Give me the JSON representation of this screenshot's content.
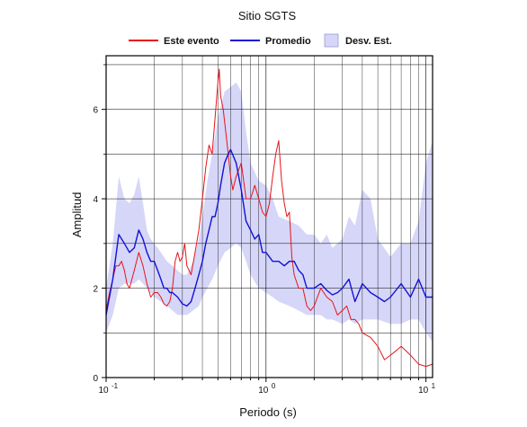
{
  "chart_data": {
    "type": "line",
    "title": "Sitio SGTS",
    "xlabel": "Periodo (s)",
    "ylabel": "Amplitud",
    "x_scale": "log",
    "xlim": [
      0.1,
      11
    ],
    "ylim": [
      0,
      7.2
    ],
    "grid": true,
    "legend_position": "top",
    "x_ticks": [
      {
        "value": 0.1,
        "base": "10",
        "exp": "-1"
      },
      {
        "value": 1,
        "label": "10",
        "exp": "0"
      },
      {
        "value": 10,
        "base": "10",
        "exp": "1"
      }
    ],
    "y_ticks": [
      0,
      2,
      4,
      6
    ],
    "legend": [
      {
        "label": "Este evento",
        "color": "#e8141b",
        "kind": "line"
      },
      {
        "label": "Promedio",
        "color": "#1212d6",
        "kind": "line"
      },
      {
        "label": "Desv. Est.",
        "color": "#d6d6f8",
        "kind": "band"
      }
    ],
    "series": [
      {
        "name": "Este evento",
        "color": "#e8141b",
        "x": [
          0.1,
          0.105,
          0.11,
          0.115,
          0.12,
          0.125,
          0.13,
          0.135,
          0.14,
          0.15,
          0.16,
          0.17,
          0.18,
          0.19,
          0.2,
          0.21,
          0.22,
          0.23,
          0.24,
          0.25,
          0.26,
          0.27,
          0.28,
          0.29,
          0.3,
          0.31,
          0.32,
          0.34,
          0.36,
          0.38,
          0.4,
          0.42,
          0.44,
          0.46,
          0.48,
          0.5,
          0.51,
          0.52,
          0.54,
          0.56,
          0.58,
          0.6,
          0.62,
          0.65,
          0.7,
          0.75,
          0.8,
          0.85,
          0.9,
          0.95,
          1.0,
          1.05,
          1.1,
          1.15,
          1.2,
          1.25,
          1.3,
          1.35,
          1.4,
          1.45,
          1.5,
          1.6,
          1.7,
          1.8,
          1.9,
          2.0,
          2.2,
          2.4,
          2.6,
          2.8,
          3.0,
          3.2,
          3.4,
          3.6,
          3.8,
          4.0,
          4.5,
          5.0,
          5.5,
          6.0,
          6.5,
          7.0,
          7.5,
          8.0,
          9.0,
          10.0,
          11.0
        ],
        "y": [
          1.5,
          1.9,
          2.2,
          2.5,
          2.5,
          2.6,
          2.4,
          2.1,
          2.0,
          2.4,
          2.8,
          2.5,
          2.1,
          1.8,
          1.9,
          1.9,
          1.8,
          1.65,
          1.6,
          1.7,
          2.0,
          2.6,
          2.8,
          2.6,
          2.7,
          3.0,
          2.5,
          2.3,
          2.8,
          3.3,
          4.0,
          4.7,
          5.2,
          5.0,
          5.8,
          6.6,
          6.9,
          6.3,
          6.0,
          5.5,
          5.0,
          4.5,
          4.2,
          4.5,
          4.8,
          4.0,
          4.0,
          4.3,
          4.0,
          3.7,
          3.6,
          3.9,
          4.5,
          5.0,
          5.3,
          4.4,
          3.9,
          3.6,
          3.7,
          2.7,
          2.3,
          2.0,
          2.0,
          1.6,
          1.5,
          1.6,
          2.0,
          1.8,
          1.7,
          1.4,
          1.5,
          1.6,
          1.3,
          1.3,
          1.2,
          1.0,
          0.9,
          0.7,
          0.4,
          0.5,
          0.6,
          0.7,
          0.6,
          0.5,
          0.3,
          0.25,
          0.3
        ]
      },
      {
        "name": "Promedio",
        "color": "#1212d6",
        "x": [
          0.1,
          0.11,
          0.12,
          0.13,
          0.14,
          0.15,
          0.16,
          0.17,
          0.18,
          0.19,
          0.2,
          0.21,
          0.22,
          0.23,
          0.24,
          0.25,
          0.26,
          0.28,
          0.3,
          0.32,
          0.34,
          0.36,
          0.38,
          0.4,
          0.42,
          0.44,
          0.46,
          0.48,
          0.5,
          0.52,
          0.55,
          0.58,
          0.6,
          0.65,
          0.7,
          0.75,
          0.8,
          0.85,
          0.9,
          0.95,
          1.0,
          1.1,
          1.2,
          1.3,
          1.4,
          1.5,
          1.6,
          1.7,
          1.8,
          2.0,
          2.2,
          2.4,
          2.6,
          2.8,
          3.0,
          3.3,
          3.6,
          4.0,
          4.5,
          5.0,
          5.5,
          6.0,
          7.0,
          8.0,
          9.0,
          10.0,
          11.0
        ],
        "y": [
          1.4,
          2.2,
          3.2,
          3.0,
          2.8,
          2.9,
          3.3,
          3.1,
          2.8,
          2.6,
          2.6,
          2.4,
          2.2,
          2.0,
          2.0,
          1.9,
          1.9,
          1.8,
          1.65,
          1.6,
          1.7,
          2.0,
          2.3,
          2.6,
          3.0,
          3.3,
          3.6,
          3.6,
          3.9,
          4.3,
          4.8,
          5.0,
          5.1,
          4.8,
          4.2,
          3.5,
          3.3,
          3.1,
          3.2,
          2.8,
          2.8,
          2.6,
          2.6,
          2.5,
          2.6,
          2.6,
          2.4,
          2.3,
          2.0,
          2.0,
          2.1,
          1.95,
          1.85,
          1.9,
          2.0,
          2.2,
          1.7,
          2.1,
          1.9,
          1.8,
          1.7,
          1.8,
          2.1,
          1.8,
          2.2,
          1.8,
          1.8
        ]
      }
    ],
    "std_band": {
      "name": "Desv. Est.",
      "color": "#d6d6f8",
      "x": [
        0.1,
        0.11,
        0.12,
        0.13,
        0.14,
        0.15,
        0.16,
        0.17,
        0.18,
        0.19,
        0.2,
        0.22,
        0.24,
        0.26,
        0.28,
        0.3,
        0.32,
        0.35,
        0.38,
        0.4,
        0.43,
        0.46,
        0.5,
        0.55,
        0.6,
        0.65,
        0.7,
        0.75,
        0.8,
        0.9,
        1.0,
        1.1,
        1.2,
        1.4,
        1.6,
        1.8,
        2.0,
        2.2,
        2.4,
        2.6,
        3.0,
        3.3,
        3.6,
        4.0,
        4.5,
        5.0,
        6.0,
        7.0,
        8.0,
        9.0,
        10.0,
        11.0
      ],
      "upper": [
        2.0,
        3.0,
        4.5,
        4.0,
        3.9,
        4.1,
        4.5,
        3.9,
        3.3,
        3.1,
        3.0,
        2.8,
        2.6,
        2.5,
        2.4,
        2.3,
        2.3,
        2.6,
        3.1,
        3.6,
        4.4,
        5.0,
        5.8,
        6.4,
        6.5,
        6.6,
        6.4,
        5.5,
        4.8,
        4.4,
        4.3,
        4.0,
        3.6,
        3.5,
        3.4,
        3.2,
        3.2,
        3.0,
        3.2,
        2.9,
        3.1,
        3.6,
        3.4,
        4.2,
        4.0,
        3.1,
        2.7,
        3.0,
        3.0,
        3.5,
        4.8,
        5.3
      ],
      "lower": [
        1.0,
        1.4,
        2.0,
        2.1,
        2.1,
        2.1,
        2.2,
        2.1,
        2.0,
        1.9,
        1.8,
        1.7,
        1.6,
        1.5,
        1.4,
        1.4,
        1.4,
        1.5,
        1.6,
        1.8,
        2.0,
        2.2,
        2.5,
        2.8,
        2.9,
        3.0,
        2.9,
        2.6,
        2.3,
        2.0,
        1.9,
        1.8,
        1.7,
        1.6,
        1.5,
        1.4,
        1.4,
        1.4,
        1.3,
        1.3,
        1.2,
        1.3,
        1.2,
        1.3,
        1.3,
        1.3,
        1.2,
        1.2,
        1.3,
        1.3,
        1.0,
        0.8
      ]
    }
  }
}
